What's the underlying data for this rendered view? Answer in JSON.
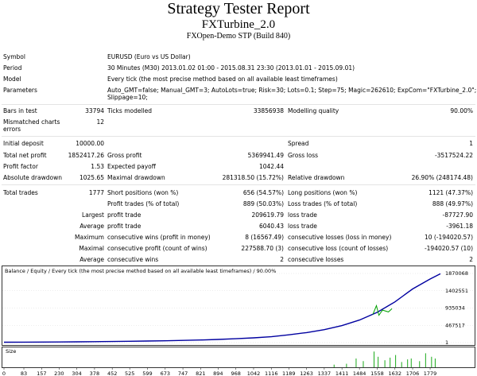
{
  "header": {
    "title": "Strategy Tester Report",
    "subtitle": "FXTurbine_2.0",
    "server": "FXOpen-Demo STP (Build 840)"
  },
  "info": [
    {
      "label": "Symbol",
      "value": "EURUSD (Euro vs US Dollar)"
    },
    {
      "label": "Period",
      "value": "30 Minutes (M30) 2013.01.02 01:00 - 2015.08.31 23:30 (2013.01.01 - 2015.09.01)"
    },
    {
      "label": "Model",
      "value": "Every tick (the most precise method based on all available least timeframes)"
    },
    {
      "label": "Parameters",
      "value_lines": [
        "Auto_GMT=false; Manual_GMT=3; AutoLots=true; Risk=30; Lots=0.1; Step=75; Magic=262610; ExpCom=\"FXTurbine_2.0\";",
        "Slippage=10;"
      ]
    }
  ],
  "bars": {
    "label": "Bars in test",
    "value": "33794",
    "ticks_label": "Ticks modelled",
    "ticks_value": "33856938",
    "quality_label": "Modelling quality",
    "quality_value": "90.00%"
  },
  "mismatched": {
    "label_lines": [
      "Mismatched charts",
      "errors"
    ],
    "value": "12"
  },
  "deposit": {
    "label": "Initial deposit",
    "value": "10000.00",
    "spread_label": "Spread",
    "spread_value": "1"
  },
  "summary": [
    {
      "l1": "Total net profit",
      "v1": "1852417.26",
      "l2": "Gross profit",
      "v2": "5369941.49",
      "l3": "Gross loss",
      "v3": "-3517524.22"
    },
    {
      "l1": "Profit factor",
      "v1": "1.53",
      "l2": "Expected payoff",
      "v2": "1042.44",
      "l3": "",
      "v3": ""
    },
    {
      "l1": "Absolute drawdown",
      "v1": "1025.65",
      "l2": "Maximal drawdown",
      "v2": "281318.50 (15.72%)",
      "l3": "Relative drawdown",
      "v3": "26.90% (248174.48)"
    }
  ],
  "trades": {
    "total_label": "Total trades",
    "total_value": "1777",
    "rows": [
      {
        "pre": "",
        "l2": "Short positions (won %)",
        "v2": "656 (54.57%)",
        "l3": "Long positions (won %)",
        "v3": "1121 (47.37%)"
      },
      {
        "pre": "",
        "l2": "Profit trades (% of total)",
        "v2": "889 (50.03%)",
        "l3": "Loss trades (% of total)",
        "v3": "888 (49.97%)"
      },
      {
        "pre": "Largest",
        "l2": "profit trade",
        "v2": "209619.79",
        "l3": "loss trade",
        "v3": "-87727.90"
      },
      {
        "pre": "Average",
        "l2": "profit trade",
        "v2": "6040.43",
        "l3": "loss trade",
        "v3": "-3961.18"
      },
      {
        "pre": "Maximum",
        "l2": "consecutive wins (profit in money)",
        "v2": "8 (16567.49)",
        "l3": "consecutive losses (loss in money)",
        "v3": "10 (-194020.57)"
      },
      {
        "pre": "Maximal",
        "l2": "consecutive profit (count of wins)",
        "v2": "227588.70 (3)",
        "l3": "consecutive loss (count of losses)",
        "v3": "-194020.57 (10)"
      },
      {
        "pre": "Average",
        "l2": "consecutive wins",
        "v2": "2",
        "l3": "consecutive losses",
        "v3": "2"
      }
    ]
  },
  "chart": {
    "legend_balance": "Balance",
    "legend_sep1": " / ",
    "legend_equity": "Equity",
    "legend_rest": " / Every tick (the most precise method based on all available least timeframes) / 90.00%",
    "balance_color": "#0000a0",
    "equity_color": "#00a000",
    "size_label": "Size"
  },
  "chart_data": {
    "type": "line",
    "title": "Balance / Equity / Every tick (the most precise method based on all available least timeframes) / 90.00%",
    "y_ticks": [
      "1870068",
      "1402551",
      "935034",
      "467517",
      "1"
    ],
    "y_tick_values": [
      1870068,
      1402551,
      935034,
      467517,
      1
    ],
    "ylim": [
      1,
      1870068
    ],
    "x_ticks": [
      "0",
      "83",
      "157",
      "230",
      "304",
      "378",
      "452",
      "525",
      "599",
      "673",
      "747",
      "821",
      "894",
      "968",
      "1042",
      "1116",
      "1189",
      "1263",
      "1337",
      "1411",
      "1484",
      "1558",
      "1632",
      "1706",
      "1779"
    ],
    "xlim": [
      0,
      1822
    ],
    "series": [
      {
        "name": "Balance",
        "x": [
          0,
          83,
          157,
          230,
          304,
          378,
          452,
          525,
          599,
          673,
          747,
          821,
          894,
          968,
          1042,
          1116,
          1189,
          1263,
          1337,
          1411,
          1484,
          1558,
          1632,
          1706,
          1779,
          1822
        ],
        "values": [
          10000,
          12000,
          15000,
          18000,
          22000,
          26000,
          30000,
          36000,
          42000,
          50000,
          60000,
          72000,
          85000,
          105000,
          130000,
          160000,
          210000,
          270000,
          350000,
          460000,
          610000,
          820000,
          1100000,
          1450000,
          1720000,
          1862000
        ]
      },
      {
        "name": "Equity",
        "x": [
          1540,
          1555,
          1565,
          1580,
          1605,
          1620
        ],
        "values": [
          760000,
          1000000,
          740000,
          880000,
          830000,
          920000
        ]
      }
    ],
    "size_series": {
      "name": "Size",
      "x": [
        1378,
        1430,
        1470,
        1500,
        1545,
        1562,
        1590,
        1612,
        1635,
        1660,
        1685,
        1700,
        1735,
        1760,
        1785,
        1800
      ],
      "values": [
        0.15,
        0.2,
        0.5,
        0.35,
        0.9,
        0.6,
        0.4,
        0.55,
        0.7,
        0.3,
        0.45,
        0.5,
        0.35,
        0.8,
        0.6,
        0.5
      ]
    }
  }
}
